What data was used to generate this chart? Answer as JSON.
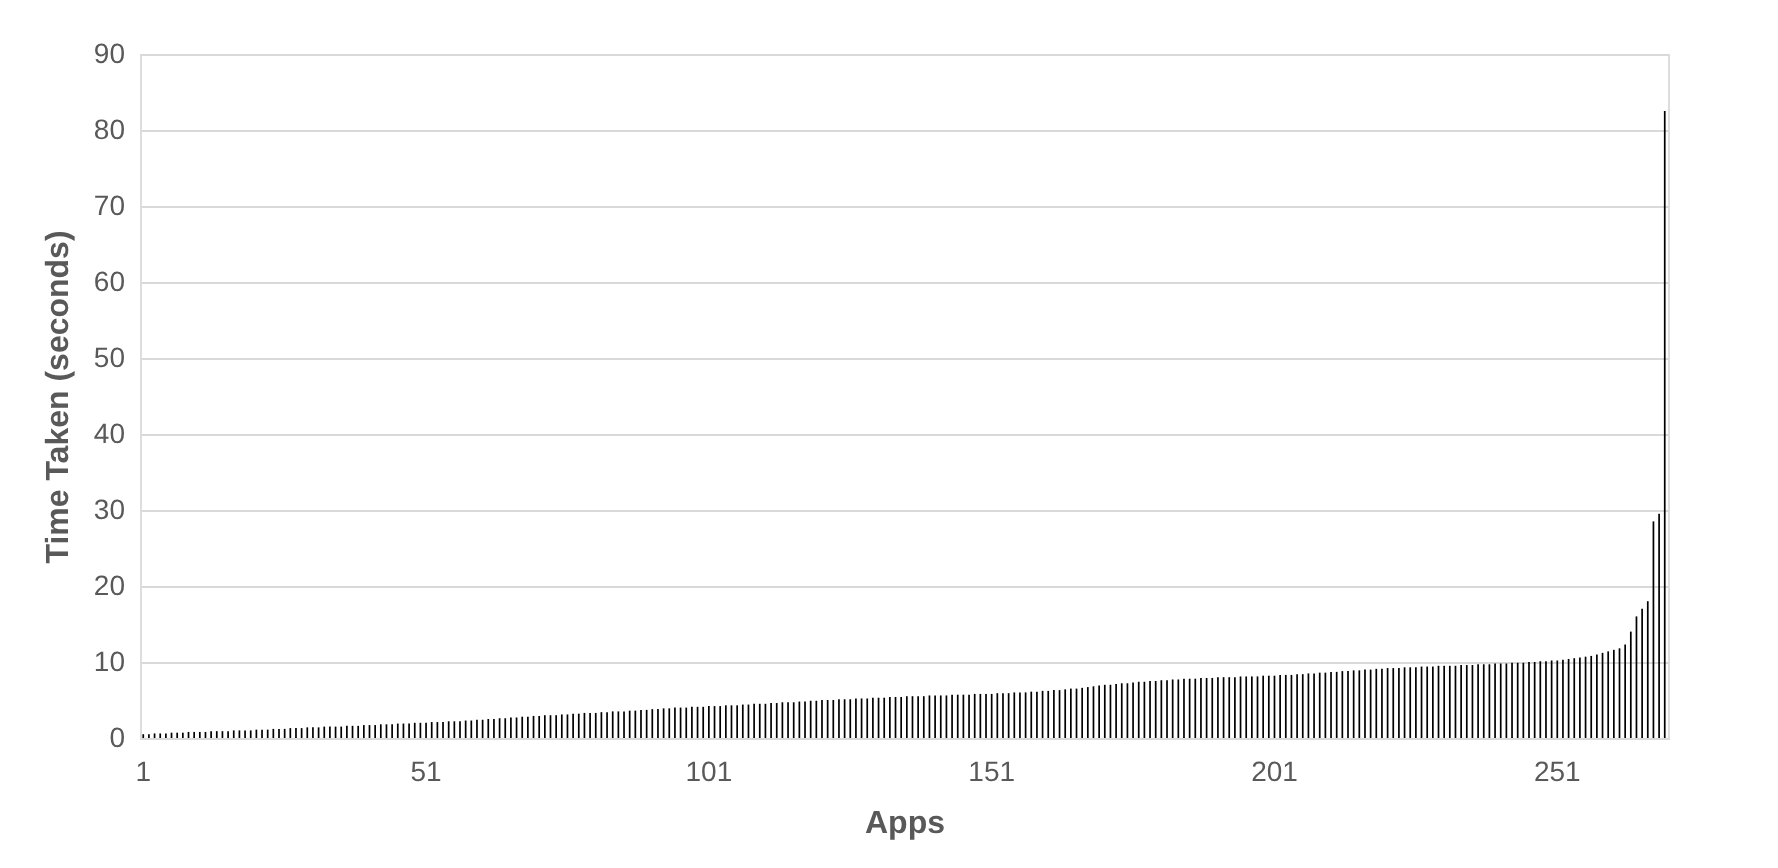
{
  "chart_data": {
    "type": "bar",
    "xlabel": "Apps",
    "ylabel": "Time Taken (seconds)",
    "color": "#000000",
    "ylim": [
      0,
      90
    ],
    "yticks": [
      0,
      10,
      20,
      30,
      40,
      50,
      60,
      70,
      80,
      90
    ],
    "grid": "y",
    "categories": [
      "1",
      null,
      null,
      null,
      null,
      null,
      null,
      null,
      null,
      null,
      null,
      null,
      null,
      null,
      null,
      null,
      null,
      null,
      null,
      null,
      null,
      null,
      null,
      null,
      null,
      null,
      null,
      null,
      null,
      null,
      null,
      null,
      null,
      null,
      null,
      null,
      null,
      null,
      null,
      null,
      null,
      null,
      null,
      null,
      null,
      null,
      null,
      null,
      null,
      null,
      "51",
      null,
      null,
      null,
      null,
      null,
      null,
      null,
      null,
      null,
      null,
      null,
      null,
      null,
      null,
      null,
      null,
      null,
      null,
      null,
      null,
      null,
      null,
      null,
      null,
      null,
      null,
      null,
      null,
      null,
      null,
      null,
      null,
      null,
      null,
      null,
      null,
      null,
      null,
      null,
      null,
      null,
      null,
      null,
      null,
      null,
      null,
      null,
      null,
      null,
      "101",
      null,
      null,
      null,
      null,
      null,
      null,
      null,
      null,
      null,
      null,
      null,
      null,
      null,
      null,
      null,
      null,
      null,
      null,
      null,
      null,
      null,
      null,
      null,
      null,
      null,
      null,
      null,
      null,
      null,
      null,
      null,
      null,
      null,
      null,
      null,
      null,
      null,
      null,
      null,
      null,
      null,
      null,
      null,
      null,
      null,
      null,
      null,
      null,
      null,
      "151",
      null,
      null,
      null,
      null,
      null,
      null,
      null,
      null,
      null,
      null,
      null,
      null,
      null,
      null,
      null,
      null,
      null,
      null,
      null,
      null,
      null,
      null,
      null,
      null,
      null,
      null,
      null,
      null,
      null,
      null,
      null,
      null,
      null,
      null,
      null,
      null,
      null,
      null,
      null,
      null,
      null,
      null,
      null,
      null,
      null,
      null,
      null,
      null,
      null,
      "201",
      null,
      null,
      null,
      null,
      null,
      null,
      null,
      null,
      null,
      null,
      null,
      null,
      null,
      null,
      null,
      null,
      null,
      null,
      null,
      null,
      null,
      null,
      null,
      null,
      null,
      null,
      null,
      null,
      null,
      null,
      null,
      null,
      null,
      null,
      null,
      null,
      null,
      null,
      null,
      null,
      null,
      null,
      null,
      null,
      null,
      null,
      null,
      null,
      null,
      "251",
      null,
      null,
      null,
      null,
      null,
      null,
      null,
      null,
      null,
      null,
      null,
      null,
      null,
      null,
      null,
      null,
      null,
      null,
      null
    ],
    "values": [
      0.5,
      0.5,
      0.6,
      0.6,
      0.6,
      0.7,
      0.7,
      0.7,
      0.8,
      0.8,
      0.8,
      0.8,
      0.9,
      0.9,
      0.9,
      0.9,
      1.0,
      1.0,
      1.0,
      1.0,
      1.1,
      1.1,
      1.1,
      1.2,
      1.2,
      1.2,
      1.3,
      1.3,
      1.3,
      1.4,
      1.4,
      1.4,
      1.5,
      1.5,
      1.5,
      1.5,
      1.6,
      1.6,
      1.6,
      1.7,
      1.7,
      1.7,
      1.8,
      1.8,
      1.8,
      1.9,
      1.9,
      1.9,
      2.0,
      2.0,
      2.0,
      2.1,
      2.1,
      2.1,
      2.2,
      2.2,
      2.2,
      2.3,
      2.3,
      2.4,
      2.4,
      2.5,
      2.5,
      2.6,
      2.6,
      2.7,
      2.7,
      2.8,
      2.8,
      2.9,
      2.9,
      3.0,
      3.0,
      3.0,
      3.1,
      3.1,
      3.2,
      3.2,
      3.3,
      3.3,
      3.3,
      3.4,
      3.4,
      3.5,
      3.5,
      3.5,
      3.6,
      3.6,
      3.7,
      3.7,
      3.8,
      3.8,
      3.9,
      3.9,
      4.0,
      4.0,
      4.0,
      4.1,
      4.1,
      4.1,
      4.2,
      4.2,
      4.2,
      4.3,
      4.3,
      4.3,
      4.4,
      4.4,
      4.5,
      4.5,
      4.5,
      4.6,
      4.6,
      4.7,
      4.7,
      4.7,
      4.8,
      4.8,
      4.9,
      4.9,
      5.0,
      5.0,
      5.0,
      5.1,
      5.1,
      5.1,
      5.2,
      5.2,
      5.2,
      5.3,
      5.3,
      5.3,
      5.4,
      5.4,
      5.4,
      5.5,
      5.5,
      5.5,
      5.5,
      5.6,
      5.6,
      5.6,
      5.6,
      5.7,
      5.7,
      5.7,
      5.7,
      5.8,
      5.8,
      5.8,
      5.8,
      5.9,
      5.9,
      5.9,
      6.0,
      6.0,
      6.0,
      6.1,
      6.1,
      6.2,
      6.2,
      6.3,
      6.3,
      6.4,
      6.5,
      6.5,
      6.6,
      6.7,
      6.8,
      6.9,
      7.0,
      7.0,
      7.1,
      7.2,
      7.2,
      7.3,
      7.4,
      7.4,
      7.5,
      7.5,
      7.6,
      7.6,
      7.7,
      7.7,
      7.8,
      7.8,
      7.8,
      7.9,
      7.9,
      7.9,
      8.0,
      8.0,
      8.0,
      8.0,
      8.1,
      8.1,
      8.1,
      8.1,
      8.2,
      8.2,
      8.2,
      8.3,
      8.3,
      8.3,
      8.4,
      8.4,
      8.5,
      8.5,
      8.6,
      8.6,
      8.7,
      8.7,
      8.8,
      8.8,
      8.9,
      8.9,
      9.0,
      9.0,
      9.1,
      9.1,
      9.2,
      9.2,
      9.2,
      9.3,
      9.3,
      9.3,
      9.4,
      9.4,
      9.4,
      9.5,
      9.5,
      9.5,
      9.5,
      9.6,
      9.6,
      9.6,
      9.7,
      9.7,
      9.7,
      9.8,
      9.8,
      9.8,
      9.9,
      9.9,
      9.9,
      10.0,
      10.0,
      10.1,
      10.1,
      10.2,
      10.2,
      10.3,
      10.4,
      10.5,
      10.6,
      10.7,
      10.8,
      11.0,
      11.2,
      11.4,
      11.6,
      11.8,
      12.3,
      14.0,
      16.0,
      17.0,
      18.0,
      28.5,
      29.5,
      82.5
    ]
  }
}
